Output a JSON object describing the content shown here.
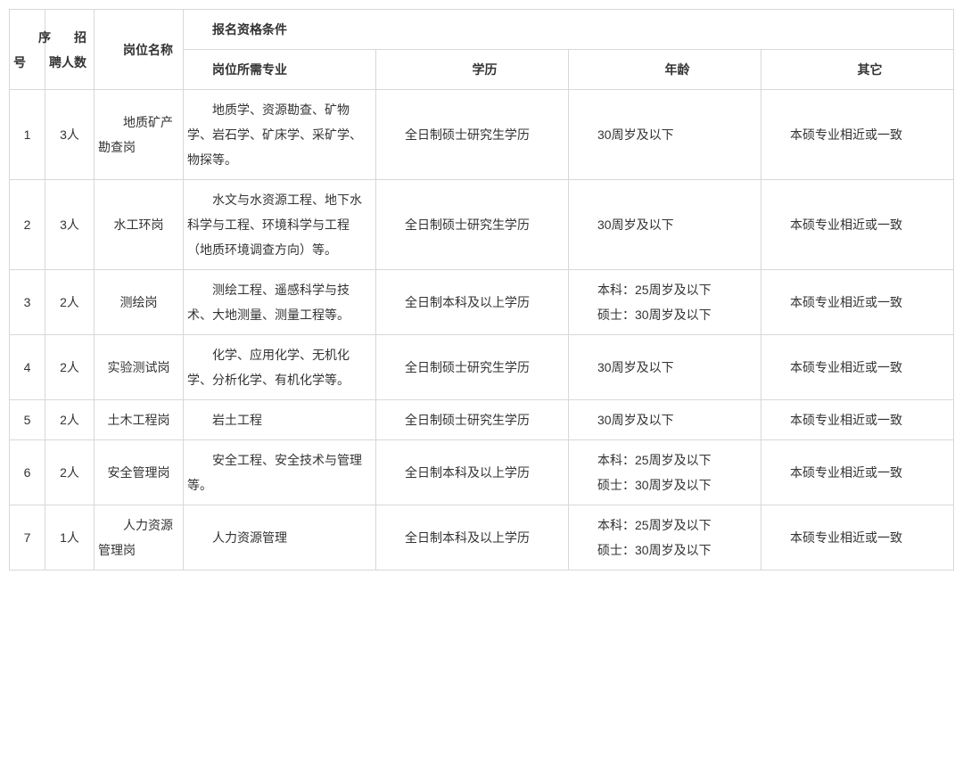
{
  "table": {
    "headers": {
      "seq": "序号",
      "count": "招聘人数",
      "position": "岗位名称",
      "qualification": "报名资格条件",
      "major": "岗位所需专业",
      "edu": "学历",
      "age": "年龄",
      "other": "其它"
    },
    "rows": [
      {
        "seq": "1",
        "count": "3人",
        "position": "地质矿产勘查岗",
        "position_center": false,
        "major": "地质学、资源勘查、矿物学、岩石学、矿床学、采矿学、物探等。",
        "edu": "全日制硕士研究生学历",
        "age": "30周岁及以下",
        "age_multi": false,
        "other": "本硕专业相近或一致"
      },
      {
        "seq": "2",
        "count": "3人",
        "position": "水工环岗",
        "position_center": true,
        "major": "水文与水资源工程、地下水科学与工程、环境科学与工程（地质环境调查方向）等。",
        "edu": "全日制硕士研究生学历",
        "age": "30周岁及以下",
        "age_multi": false,
        "other": "本硕专业相近或一致"
      },
      {
        "seq": "3",
        "count": "2人",
        "position": "测绘岗",
        "position_center": true,
        "major": "测绘工程、遥感科学与技术、大地测量、测量工程等。",
        "edu": "全日制本科及以上学历",
        "age_line1": "本科：25周岁及以下",
        "age_line2": "硕士：30周岁及以下",
        "age_multi": true,
        "other": "本硕专业相近或一致"
      },
      {
        "seq": "4",
        "count": "2人",
        "position": "实验测试岗",
        "position_center": true,
        "major": "化学、应用化学、无机化学、分析化学、有机化学等。",
        "edu": "全日制硕士研究生学历",
        "age": "30周岁及以下",
        "age_multi": false,
        "other": "本硕专业相近或一致"
      },
      {
        "seq": "5",
        "count": "2人",
        "position": "土木工程岗",
        "position_center": true,
        "major": "岩土工程",
        "edu": "全日制硕士研究生学历",
        "age": "30周岁及以下",
        "age_multi": false,
        "other": "本硕专业相近或一致"
      },
      {
        "seq": "6",
        "count": "2人",
        "position": "安全管理岗",
        "position_center": true,
        "major": "安全工程、安全技术与管理等。",
        "edu": "全日制本科及以上学历",
        "age_line1": "本科：25周岁及以下",
        "age_line2": "硕士：30周岁及以下",
        "age_multi": true,
        "other": "本硕专业相近或一致"
      },
      {
        "seq": "7",
        "count": "1人",
        "position": "人力资源管理岗",
        "position_center": false,
        "major": "人力资源管理",
        "edu": "全日制本科及以上学历",
        "age_line1": "本科：25周岁及以下",
        "age_line2": "硕士：30周岁及以下",
        "age_multi": true,
        "other": "本硕专业相近或一致"
      }
    ],
    "colors": {
      "border": "#d8d8d8",
      "text": "#333333",
      "background": "#ffffff"
    },
    "fontsize": 14,
    "line_height": 2
  }
}
